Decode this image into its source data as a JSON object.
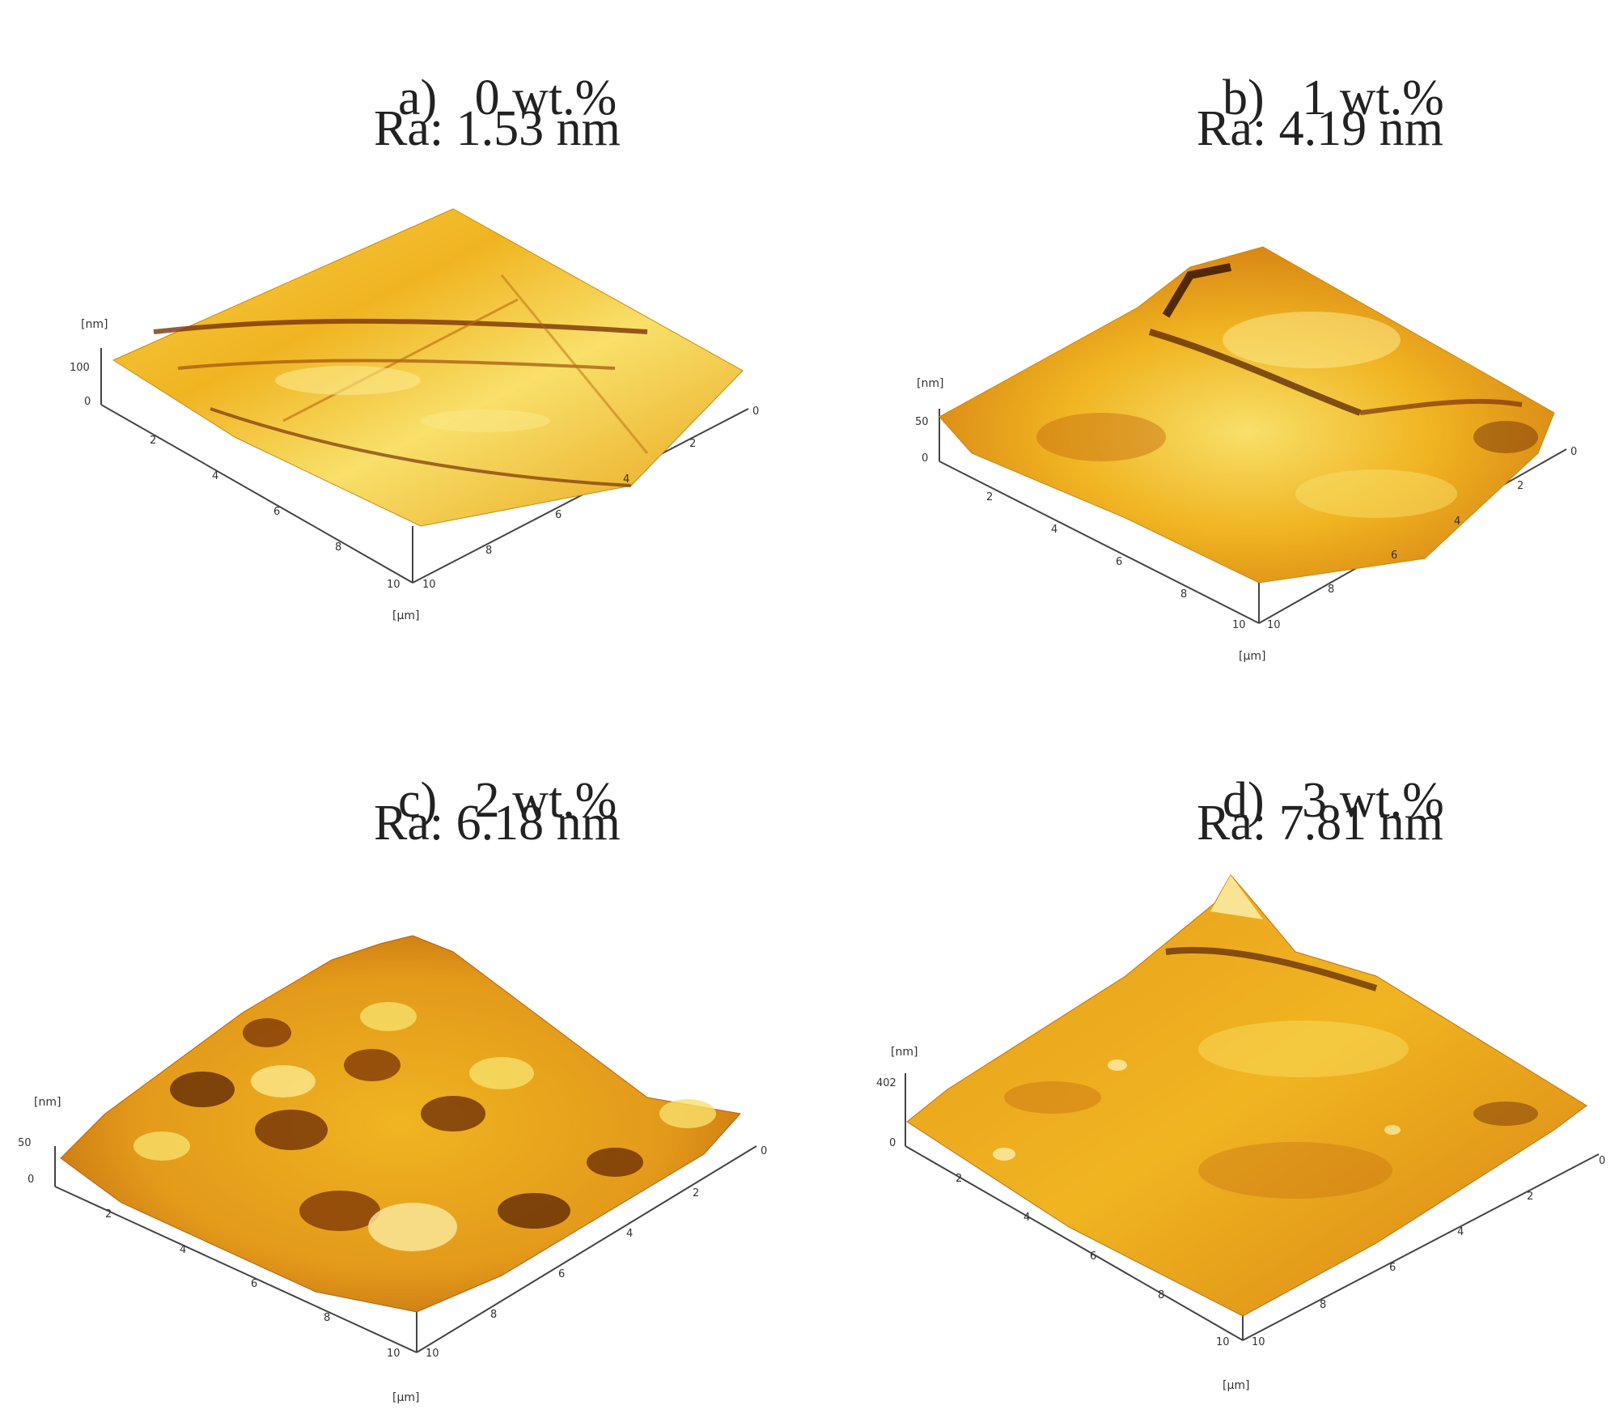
{
  "panels": [
    {
      "id": "a",
      "label": "a)",
      "wt": "0 wt.%",
      "ra": "Ra: 1.53 nm",
      "z_unit": "[nm]",
      "xy_unit": "[µm]",
      "z_max": "100",
      "z_min": "0",
      "x_ticks": [
        "2",
        "4",
        "6",
        "8",
        "10"
      ],
      "y_ticks": [
        "0",
        "2",
        "4",
        "6",
        "8",
        "10"
      ]
    },
    {
      "id": "b",
      "label": "b)",
      "wt": "1 wt.%",
      "ra": "Ra: 4.19 nm",
      "z_unit": "[nm]",
      "xy_unit": "[µm]",
      "z_max": "50",
      "z_min": "0",
      "x_ticks": [
        "2",
        "4",
        "6",
        "8",
        "10"
      ],
      "y_ticks": [
        "0",
        "2",
        "4",
        "6",
        "8",
        "10"
      ]
    },
    {
      "id": "c",
      "label": "c)",
      "wt": "2 wt.%",
      "ra": "Ra: 6.18 nm",
      "z_unit": "[nm]",
      "xy_unit": "[µm]",
      "z_max": "50",
      "z_min": "0",
      "x_ticks": [
        "2",
        "4",
        "6",
        "8",
        "10"
      ],
      "y_ticks": [
        "0",
        "2",
        "4",
        "6",
        "8",
        "10"
      ]
    },
    {
      "id": "d",
      "label": "d)",
      "wt": "3 wt.%",
      "ra": "Ra: 7.81 nm",
      "z_unit": "[nm]",
      "xy_unit": "[µm]",
      "z_max": "402",
      "z_min": "0",
      "x_ticks": [
        "2",
        "4",
        "6",
        "8",
        "10"
      ],
      "y_ticks": [
        "0",
        "2",
        "4",
        "6",
        "8",
        "10"
      ]
    }
  ],
  "colors": {
    "surface_light": "#f7e07a",
    "surface_mid": "#f0b421",
    "surface_dark": "#c96d0f",
    "surface_shadow": "#6a2a05",
    "axis": "#444444"
  }
}
